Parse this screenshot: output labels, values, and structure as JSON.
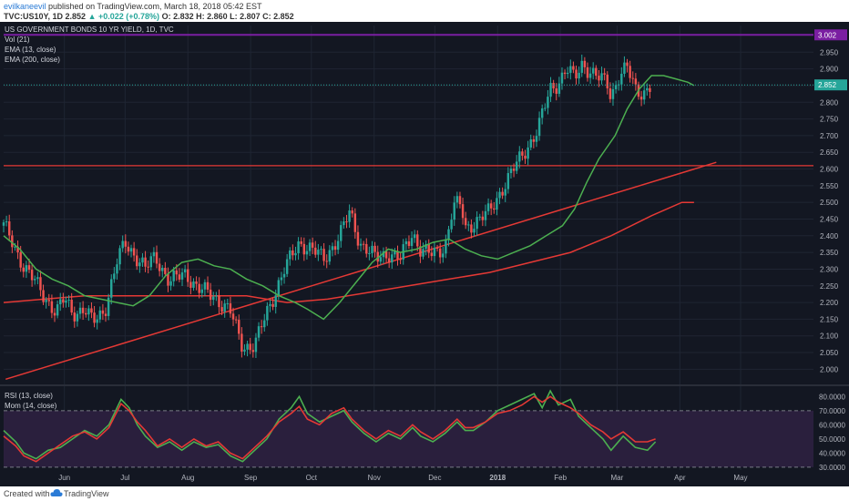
{
  "header": {
    "author": "evilkaneevil",
    "published": " published on TradingView.com, March 18, 2018 05:42 EST",
    "ticker_line": "TVC:US10Y, 1D  2.852",
    "change": "+0.022 (+0.78%)",
    "ohlc": "O: 2.832  H: 2.860  L: 2.807  C: 2.852"
  },
  "legend": {
    "title": "US GOVERNMENT BONDS 10 YR YIELD, 1D, TVC",
    "vol": "Vol (21)",
    "ema13": "EMA (13, close)",
    "ema200": "EMA (200, close)",
    "rsi": "RSI (13, close)",
    "mom": "Mom (14, close)"
  },
  "footer": {
    "created": "Created with",
    "brand": "TradingView"
  },
  "colors": {
    "background": "#131722",
    "grid": "#1f2533",
    "up": "#26a69a",
    "down": "#ef5350",
    "ema13": "#4caf50",
    "ema200": "#e53935",
    "trendline": "#e53935",
    "rsi": "#e53935",
    "mom": "#4caf50",
    "rsi_band": "#2a1f3d",
    "last_price_tag": "#26a69a",
    "top_price_tag": "#7b1fa2"
  },
  "chart_data": {
    "type": "candlestick",
    "main": {
      "ylim": [
        1.96,
        3.03
      ],
      "yticks": [
        "2.950",
        "2.900",
        "2.850",
        "2.800",
        "2.750",
        "2.700",
        "2.650",
        "2.600",
        "2.550",
        "2.500",
        "2.450",
        "2.400",
        "2.350",
        "2.300",
        "2.250",
        "2.200",
        "2.150",
        "2.100",
        "2.050",
        "2.000"
      ],
      "last_price": "2.852",
      "top_price": "3.002",
      "horizontal_line": 2.61,
      "trendline": {
        "from": [
          "2017-05-02",
          1.97
        ],
        "to": [
          "2018-04-18",
          2.62
        ]
      },
      "ema13_path": [
        [
          0,
          2.4
        ],
        [
          8,
          2.36
        ],
        [
          16,
          2.3
        ],
        [
          24,
          2.27
        ],
        [
          32,
          2.25
        ],
        [
          40,
          2.22
        ],
        [
          48,
          2.21
        ],
        [
          56,
          2.2
        ],
        [
          64,
          2.19
        ],
        [
          72,
          2.22
        ],
        [
          80,
          2.28
        ],
        [
          88,
          2.32
        ],
        [
          96,
          2.33
        ],
        [
          104,
          2.31
        ],
        [
          112,
          2.3
        ],
        [
          120,
          2.27
        ],
        [
          128,
          2.25
        ],
        [
          136,
          2.22
        ],
        [
          144,
          2.2
        ],
        [
          150,
          2.18
        ],
        [
          158,
          2.15
        ],
        [
          166,
          2.2
        ],
        [
          174,
          2.26
        ],
        [
          182,
          2.32
        ],
        [
          190,
          2.36
        ],
        [
          196,
          2.35
        ],
        [
          204,
          2.36
        ],
        [
          212,
          2.38
        ],
        [
          220,
          2.39
        ],
        [
          228,
          2.36
        ],
        [
          236,
          2.34
        ],
        [
          244,
          2.33
        ],
        [
          252,
          2.35
        ],
        [
          260,
          2.37
        ],
        [
          268,
          2.4
        ],
        [
          276,
          2.43
        ],
        [
          282,
          2.48
        ],
        [
          288,
          2.56
        ],
        [
          294,
          2.63
        ],
        [
          302,
          2.7
        ],
        [
          308,
          2.78
        ],
        [
          314,
          2.84
        ],
        [
          320,
          2.88
        ],
        [
          326,
          2.88
        ],
        [
          332,
          2.87
        ],
        [
          338,
          2.86
        ],
        [
          341,
          2.85
        ]
      ],
      "ema200_path": [
        [
          0,
          2.2
        ],
        [
          20,
          2.21
        ],
        [
          40,
          2.22
        ],
        [
          60,
          2.22
        ],
        [
          80,
          2.22
        ],
        [
          100,
          2.22
        ],
        [
          120,
          2.22
        ],
        [
          140,
          2.2
        ],
        [
          160,
          2.21
        ],
        [
          180,
          2.23
        ],
        [
          200,
          2.25
        ],
        [
          220,
          2.27
        ],
        [
          240,
          2.29
        ],
        [
          260,
          2.32
        ],
        [
          280,
          2.35
        ],
        [
          300,
          2.4
        ],
        [
          320,
          2.46
        ],
        [
          335,
          2.5
        ],
        [
          341,
          2.5
        ]
      ]
    },
    "oscillator": {
      "ylim": [
        28,
        86
      ],
      "yticks": [
        "80.0000",
        "70.0000",
        "60.0000",
        "50.0000",
        "40.0000",
        "30.0000"
      ],
      "band": [
        30,
        70
      ]
    },
    "x_labels": [
      {
        "label": "Jun",
        "day": 30
      },
      {
        "label": "Jul",
        "day": 60
      },
      {
        "label": "Aug",
        "day": 91
      },
      {
        "label": "Sep",
        "day": 122
      },
      {
        "label": "Oct",
        "day": 152
      },
      {
        "label": "Nov",
        "day": 183
      },
      {
        "label": "Dec",
        "day": 213
      },
      {
        "label": "2018",
        "day": 244
      },
      {
        "label": "Feb",
        "day": 275
      },
      {
        "label": "Mar",
        "day": 303
      },
      {
        "label": "Apr",
        "day": 334
      },
      {
        "label": "May",
        "day": 364
      }
    ],
    "day_range": [
      0,
      400
    ],
    "candle_anchors": [
      [
        0,
        2.43
      ],
      [
        10,
        2.31
      ],
      [
        20,
        2.22
      ],
      [
        26,
        2.17
      ],
      [
        30,
        2.21
      ],
      [
        34,
        2.17
      ],
      [
        40,
        2.18
      ],
      [
        44,
        2.14
      ],
      [
        50,
        2.18
      ],
      [
        56,
        2.32
      ],
      [
        60,
        2.38
      ],
      [
        64,
        2.35
      ],
      [
        70,
        2.3
      ],
      [
        75,
        2.34
      ],
      [
        82,
        2.26
      ],
      [
        90,
        2.29
      ],
      [
        96,
        2.24
      ],
      [
        104,
        2.22
      ],
      [
        112,
        2.17
      ],
      [
        118,
        2.07
      ],
      [
        124,
        2.07
      ],
      [
        130,
        2.17
      ],
      [
        138,
        2.29
      ],
      [
        146,
        2.38
      ],
      [
        152,
        2.36
      ],
      [
        158,
        2.33
      ],
      [
        166,
        2.4
      ],
      [
        171,
        2.47
      ],
      [
        176,
        2.38
      ],
      [
        184,
        2.33
      ],
      [
        190,
        2.35
      ],
      [
        196,
        2.33
      ],
      [
        202,
        2.41
      ],
      [
        206,
        2.36
      ],
      [
        212,
        2.34
      ],
      [
        218,
        2.37
      ],
      [
        222,
        2.49
      ],
      [
        226,
        2.49
      ],
      [
        228,
        2.42
      ],
      [
        232,
        2.44
      ],
      [
        240,
        2.47
      ],
      [
        246,
        2.54
      ],
      [
        252,
        2.6
      ],
      [
        258,
        2.66
      ],
      [
        264,
        2.72
      ],
      [
        270,
        2.84
      ],
      [
        274,
        2.86
      ],
      [
        278,
        2.9
      ],
      [
        282,
        2.87
      ],
      [
        286,
        2.92
      ],
      [
        290,
        2.89
      ],
      [
        294,
        2.87
      ],
      [
        298,
        2.86
      ],
      [
        300,
        2.82
      ],
      [
        304,
        2.88
      ],
      [
        308,
        2.9
      ],
      [
        312,
        2.84
      ],
      [
        316,
        2.83
      ],
      [
        320,
        2.85
      ]
    ],
    "rsi_path": [
      [
        0,
        52
      ],
      [
        6,
        45
      ],
      [
        10,
        38
      ],
      [
        16,
        34
      ],
      [
        22,
        40
      ],
      [
        28,
        46
      ],
      [
        34,
        52
      ],
      [
        40,
        55
      ],
      [
        46,
        50
      ],
      [
        52,
        58
      ],
      [
        58,
        75
      ],
      [
        62,
        70
      ],
      [
        66,
        62
      ],
      [
        70,
        56
      ],
      [
        76,
        45
      ],
      [
        82,
        50
      ],
      [
        88,
        44
      ],
      [
        94,
        50
      ],
      [
        100,
        45
      ],
      [
        106,
        48
      ],
      [
        112,
        40
      ],
      [
        118,
        36
      ],
      [
        124,
        44
      ],
      [
        130,
        52
      ],
      [
        136,
        62
      ],
      [
        142,
        68
      ],
      [
        146,
        73
      ],
      [
        150,
        64
      ],
      [
        156,
        60
      ],
      [
        162,
        68
      ],
      [
        168,
        72
      ],
      [
        172,
        64
      ],
      [
        178,
        56
      ],
      [
        184,
        50
      ],
      [
        190,
        56
      ],
      [
        196,
        52
      ],
      [
        202,
        60
      ],
      [
        206,
        55
      ],
      [
        212,
        50
      ],
      [
        218,
        56
      ],
      [
        224,
        64
      ],
      [
        228,
        58
      ],
      [
        232,
        58
      ],
      [
        238,
        62
      ],
      [
        244,
        68
      ],
      [
        250,
        70
      ],
      [
        256,
        74
      ],
      [
        262,
        80
      ],
      [
        266,
        76
      ],
      [
        270,
        80
      ],
      [
        274,
        76
      ],
      [
        280,
        72
      ],
      [
        284,
        68
      ],
      [
        290,
        60
      ],
      [
        296,
        55
      ],
      [
        300,
        50
      ],
      [
        306,
        55
      ],
      [
        312,
        48
      ],
      [
        318,
        48
      ],
      [
        322,
        50
      ]
    ],
    "mom_path": [
      [
        0,
        56
      ],
      [
        6,
        48
      ],
      [
        10,
        40
      ],
      [
        16,
        36
      ],
      [
        22,
        42
      ],
      [
        28,
        44
      ],
      [
        34,
        50
      ],
      [
        40,
        56
      ],
      [
        46,
        52
      ],
      [
        52,
        60
      ],
      [
        58,
        78
      ],
      [
        62,
        72
      ],
      [
        66,
        60
      ],
      [
        70,
        52
      ],
      [
        76,
        44
      ],
      [
        82,
        48
      ],
      [
        88,
        42
      ],
      [
        94,
        48
      ],
      [
        100,
        44
      ],
      [
        106,
        46
      ],
      [
        112,
        38
      ],
      [
        118,
        34
      ],
      [
        124,
        42
      ],
      [
        130,
        50
      ],
      [
        136,
        64
      ],
      [
        142,
        72
      ],
      [
        146,
        80
      ],
      [
        150,
        68
      ],
      [
        156,
        62
      ],
      [
        162,
        66
      ],
      [
        168,
        70
      ],
      [
        172,
        62
      ],
      [
        178,
        54
      ],
      [
        184,
        48
      ],
      [
        190,
        54
      ],
      [
        196,
        50
      ],
      [
        202,
        58
      ],
      [
        206,
        52
      ],
      [
        212,
        48
      ],
      [
        218,
        54
      ],
      [
        224,
        62
      ],
      [
        228,
        56
      ],
      [
        232,
        56
      ],
      [
        238,
        62
      ],
      [
        244,
        70
      ],
      [
        250,
        74
      ],
      [
        256,
        78
      ],
      [
        262,
        82
      ],
      [
        266,
        72
      ],
      [
        270,
        84
      ],
      [
        274,
        74
      ],
      [
        280,
        78
      ],
      [
        284,
        66
      ],
      [
        290,
        58
      ],
      [
        296,
        50
      ],
      [
        300,
        42
      ],
      [
        306,
        52
      ],
      [
        312,
        44
      ],
      [
        318,
        42
      ],
      [
        322,
        48
      ]
    ]
  }
}
